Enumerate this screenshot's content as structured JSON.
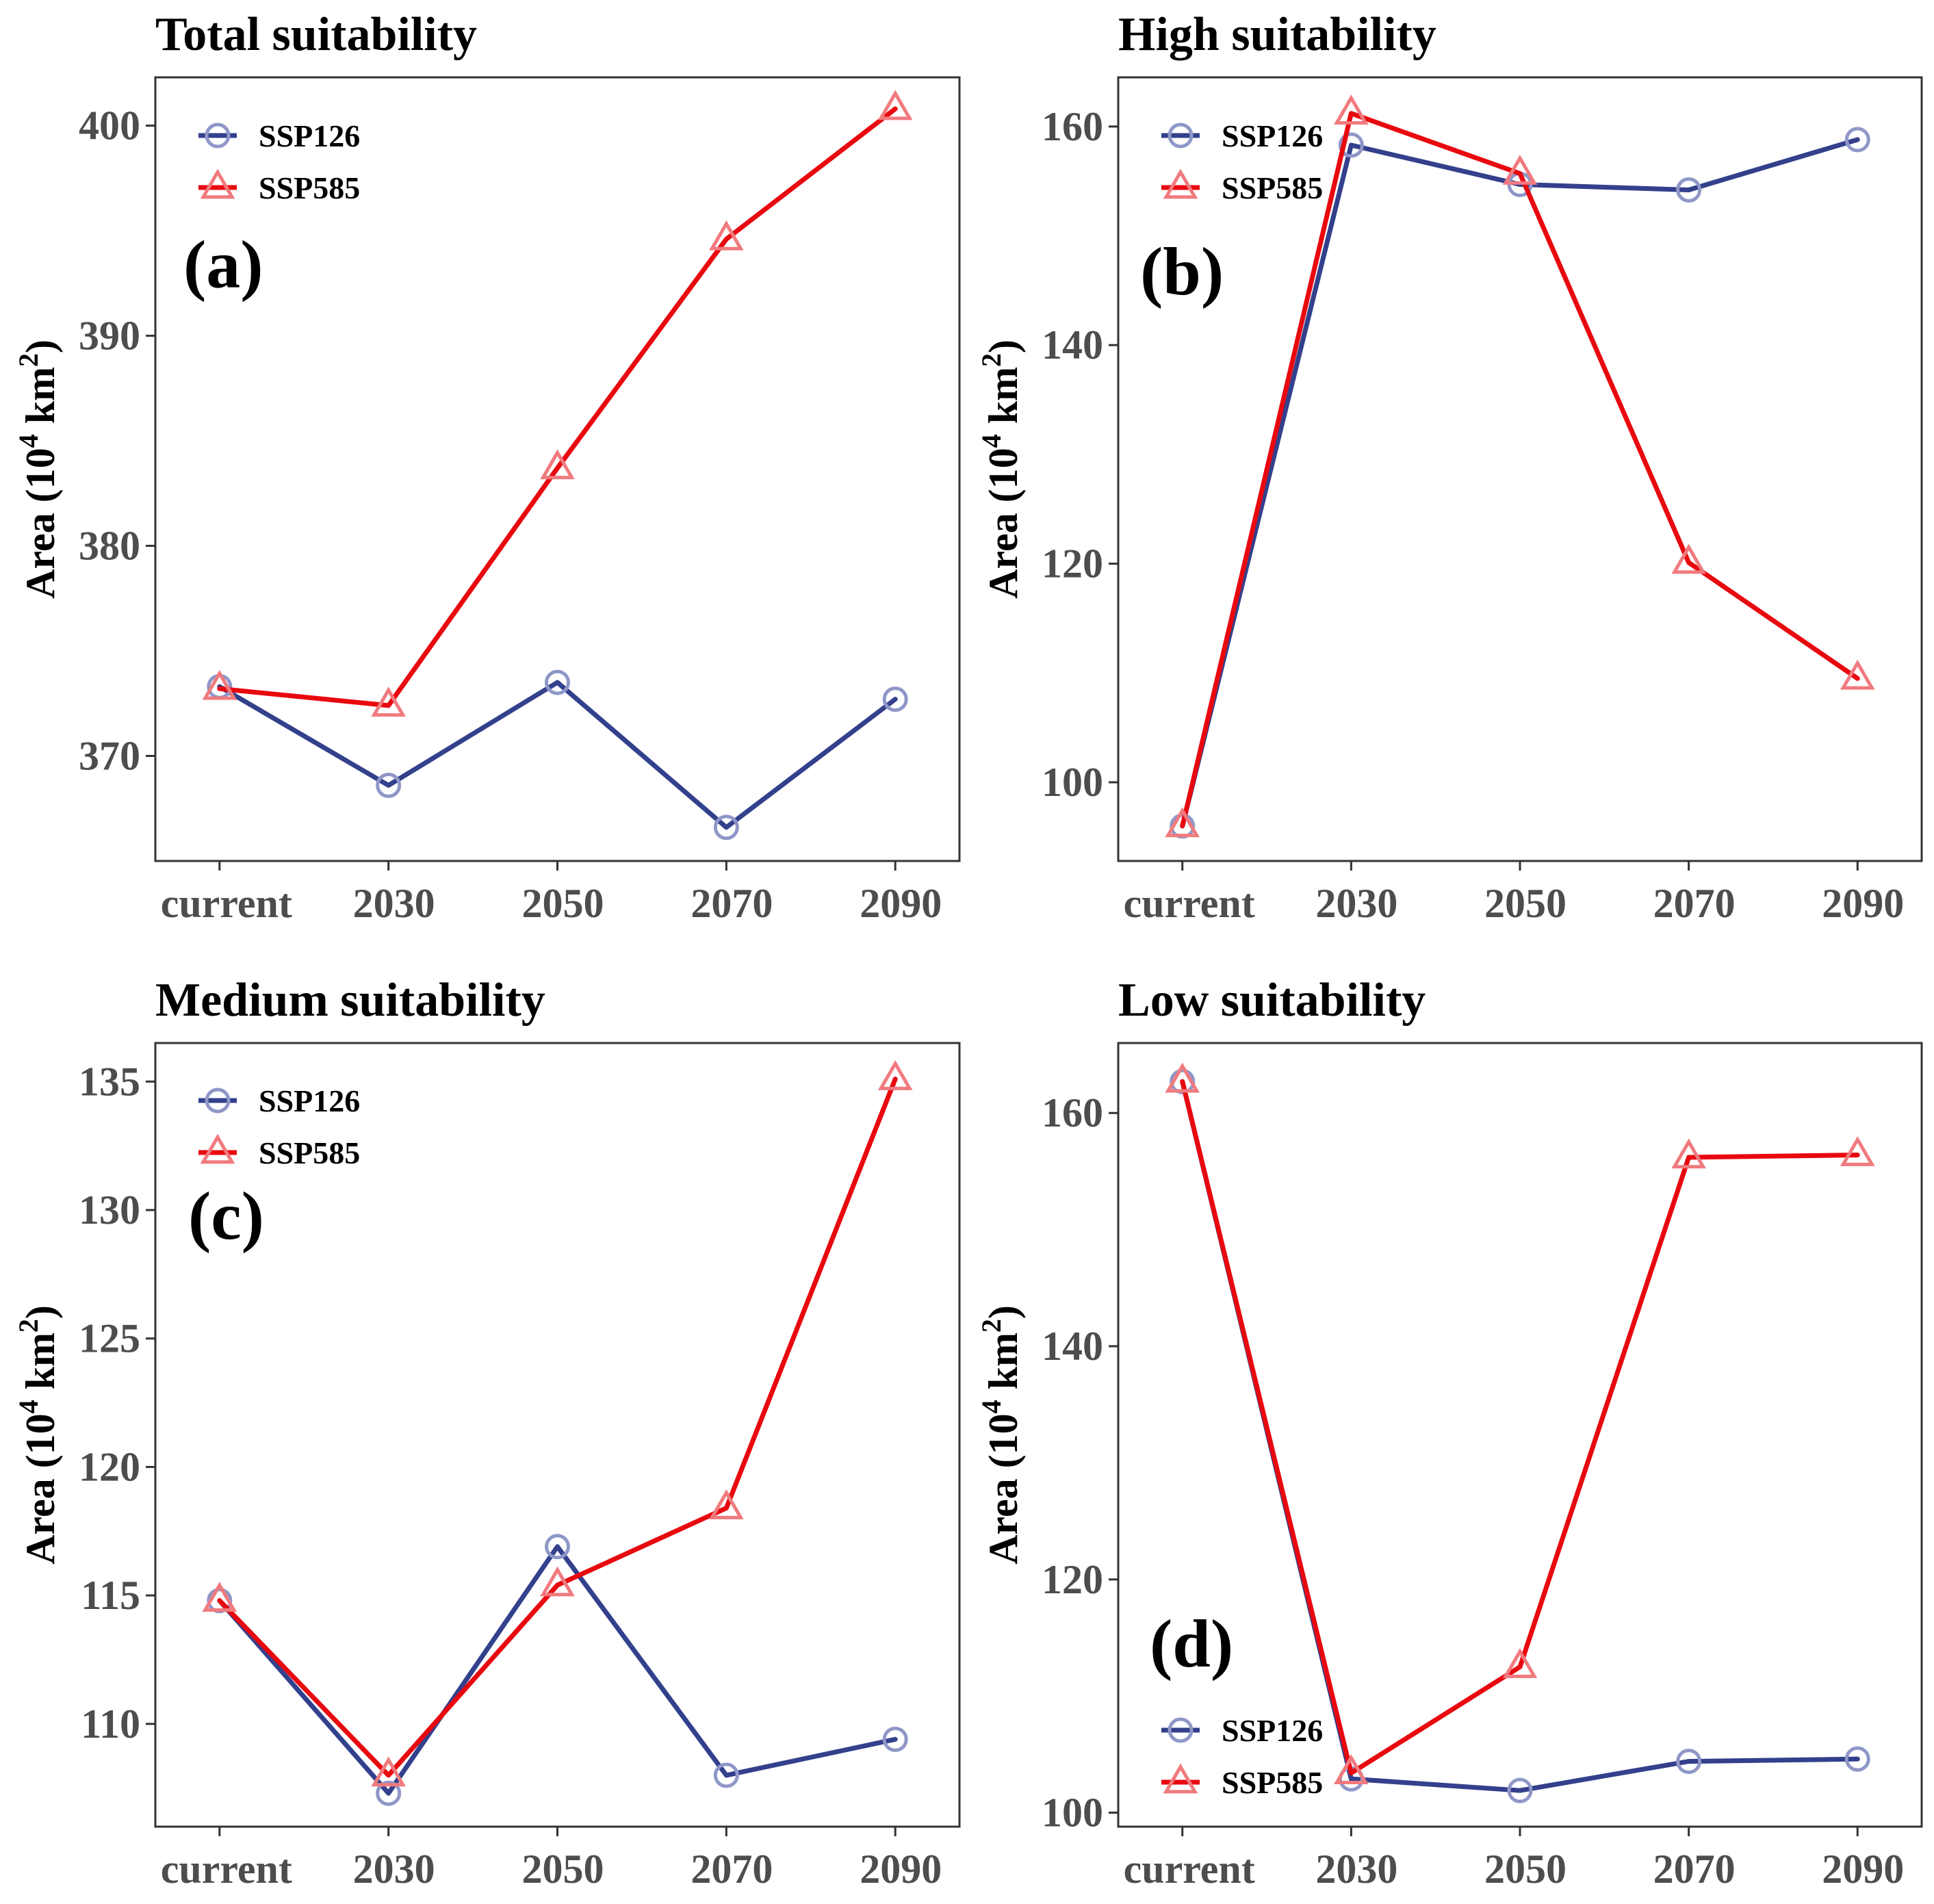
{
  "chart_data": [
    {
      "type": "line",
      "title": "Total suitability",
      "tag": "(a)",
      "ylabel": "Area (10",
      "ylabel_sup": "4",
      "ylabel_unit": " km",
      "ylabel_unit_sup": "2",
      "ylabel_end": ")",
      "categories": [
        "current",
        "2030",
        "2050",
        "2070",
        "2090"
      ],
      "ylim": [
        365,
        402.3
      ],
      "yticks": [
        370,
        380,
        390,
        400
      ],
      "legend_position": "top-left",
      "series": [
        {
          "name": "SSP126",
          "values": [
            373.3,
            368.6,
            373.5,
            366.6,
            372.7
          ]
        },
        {
          "name": "SSP585",
          "values": [
            373.2,
            372.4,
            383.7,
            394.6,
            400.8
          ]
        }
      ]
    },
    {
      "type": "line",
      "title": "High suitability",
      "tag": "(b)",
      "ylabel": "Area (10",
      "ylabel_sup": "4",
      "ylabel_unit": " km",
      "ylabel_unit_sup": "2",
      "ylabel_end": ")",
      "categories": [
        "current",
        "2030",
        "2050",
        "2070",
        "2090"
      ],
      "ylim": [
        92.8,
        164.5
      ],
      "yticks": [
        100,
        120,
        140,
        160
      ],
      "legend_position": "top-left",
      "series": [
        {
          "name": "SSP126",
          "values": [
            96,
            158.3,
            154.7,
            154.2,
            158.8
          ]
        },
        {
          "name": "SSP585",
          "values": [
            96,
            161.2,
            155.7,
            120.1,
            109.5
          ]
        }
      ]
    },
    {
      "type": "line",
      "title": "Medium suitability",
      "tag": "(c)",
      "ylabel": "Area (10",
      "ylabel_sup": "4",
      "ylabel_unit": " km",
      "ylabel_unit_sup": "2",
      "ylabel_end": ")",
      "categories": [
        "current",
        "2030",
        "2050",
        "2070",
        "2090"
      ],
      "ylim": [
        106,
        136.5
      ],
      "yticks": [
        110,
        115,
        120,
        125,
        130,
        135
      ],
      "legend_position": "top-left",
      "series": [
        {
          "name": "SSP126",
          "values": [
            114.8,
            107.3,
            116.9,
            108,
            109.4
          ]
        },
        {
          "name": "SSP585",
          "values": [
            114.8,
            108,
            115.4,
            118.4,
            135.1
          ]
        }
      ]
    },
    {
      "type": "line",
      "title": "Low suitability",
      "tag": "(d)",
      "ylabel": "Area (10",
      "ylabel_sup": "4",
      "ylabel_unit": " km",
      "ylabel_unit_sup": "2",
      "ylabel_end": ")",
      "categories": [
        "current",
        "2030",
        "2050",
        "2070",
        "2090"
      ],
      "ylim": [
        98.8,
        166
      ],
      "yticks": [
        100,
        120,
        140,
        160
      ],
      "legend_position": "bottom-left",
      "series": [
        {
          "name": "SSP126",
          "values": [
            162.7,
            102.9,
            101.9,
            104.4,
            104.6
          ]
        },
        {
          "name": "SSP585",
          "values": [
            162.7,
            103.4,
            112.5,
            156.2,
            156.4
          ]
        }
      ]
    }
  ],
  "colors": {
    "SSP126": "#33408c",
    "SSP126_marker": "#8f97c8",
    "SSP585": "#e8090f",
    "SSP585_marker": "#f07a7e",
    "axis": "#333333",
    "tick_text": "#4d4d4d"
  },
  "markers": {
    "SSP126": "circle",
    "SSP585": "triangle"
  }
}
